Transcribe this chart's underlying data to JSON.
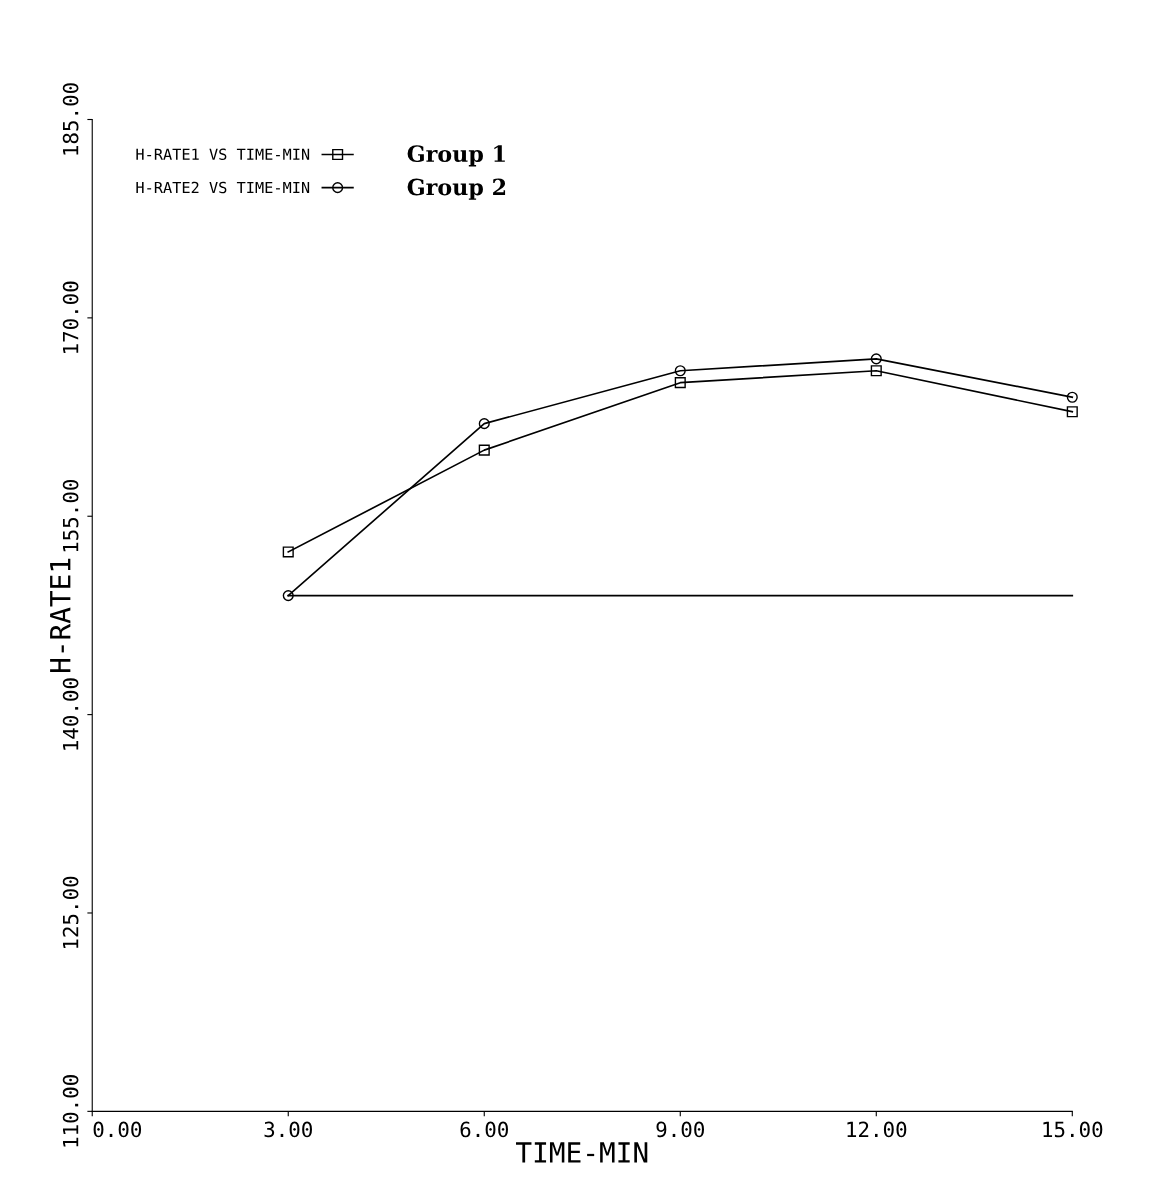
{
  "chart_data": {
    "type": "line",
    "xlabel": "TIME-MIN",
    "ylabel": "H-RATE1",
    "x": [
      3,
      6,
      9,
      12,
      15
    ],
    "series": [
      {
        "name": "H-RATE1 VS TIME-MIN",
        "color": "#000000",
        "marker": "square",
        "values": [
          152.3,
          160.0,
          165.1,
          166.0,
          162.9
        ]
      },
      {
        "name": "H-RATE2 VS TIME-MIN",
        "color": "#000000",
        "marker": "circle",
        "values": [
          149.0,
          162.0,
          166.0,
          166.9,
          164.0
        ]
      },
      {
        "type": "line",
        "x": [
          3,
          15
        ],
        "color": "#000000",
        "marker": "none",
        "values": [
          149.0,
          149.0
        ]
      }
    ],
    "xlim": [
      0,
      15
    ],
    "ylim": [
      110,
      185
    ],
    "xticks": [
      {
        "value": 0,
        "label": "0.00"
      },
      {
        "value": 3,
        "label": "3.00"
      },
      {
        "value": 6,
        "label": "6.00"
      },
      {
        "value": 9,
        "label": "9.00"
      },
      {
        "value": 12,
        "label": "12.00"
      },
      {
        "value": 15,
        "label": "15.00"
      }
    ],
    "yticks": [
      {
        "value": 110,
        "label": "110.00"
      },
      {
        "value": 125,
        "label": "125.00"
      },
      {
        "value": 140,
        "label": "140.00"
      },
      {
        "value": 155,
        "label": "155.00"
      },
      {
        "value": 170,
        "label": "170.00"
      },
      {
        "value": 185,
        "label": "185.00"
      }
    ],
    "grid": false,
    "legend": "top left",
    "annotations": [
      "Group 1",
      "Group 2"
    ]
  }
}
